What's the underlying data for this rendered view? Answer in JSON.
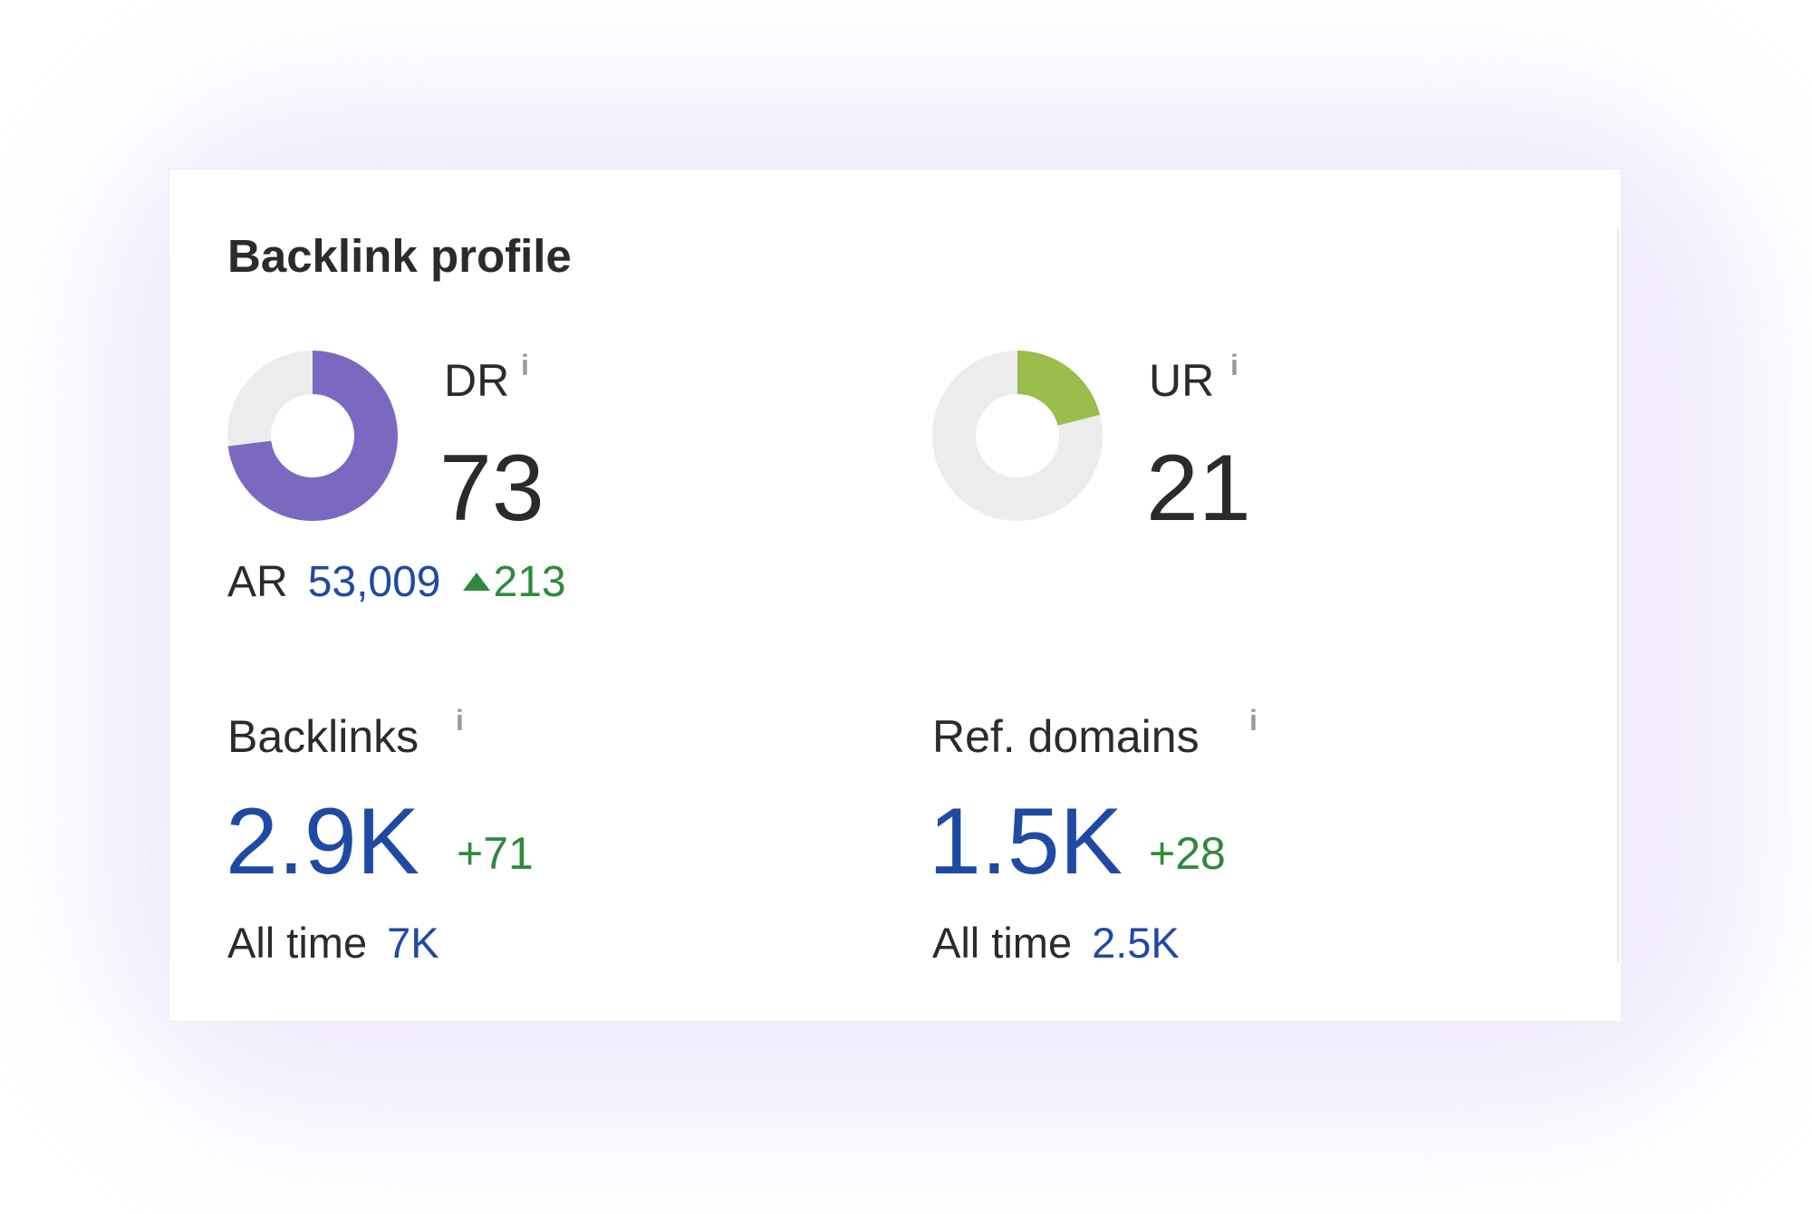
{
  "card": {
    "title": "Backlink profile"
  },
  "dr": {
    "label": "DR",
    "info_icon": "i",
    "value": "73",
    "ring_fraction": 0.73,
    "ring_color": "#7b68c0"
  },
  "ur": {
    "label": "UR",
    "info_icon": "i",
    "value": "21",
    "ring_fraction": 0.21,
    "ring_color": "#9bbd4b"
  },
  "ring_track_color": "#ececed",
  "ar": {
    "label": "AR",
    "value": "53,009",
    "delta": "213"
  },
  "backlinks": {
    "label": "Backlinks",
    "info_icon": "i",
    "value": "2.9K",
    "delta": "+71",
    "alltime_label": "All time",
    "alltime_value": "7K"
  },
  "ref_domains": {
    "label": "Ref. domains",
    "info_icon": "i",
    "value": "1.5K",
    "delta": "+28",
    "alltime_label": "All time",
    "alltime_value": "2.5K"
  },
  "colors": {
    "link_blue": "#1f4aa3",
    "positive_green": "#2f8a3c",
    "text_dark": "#2b2b2b"
  }
}
